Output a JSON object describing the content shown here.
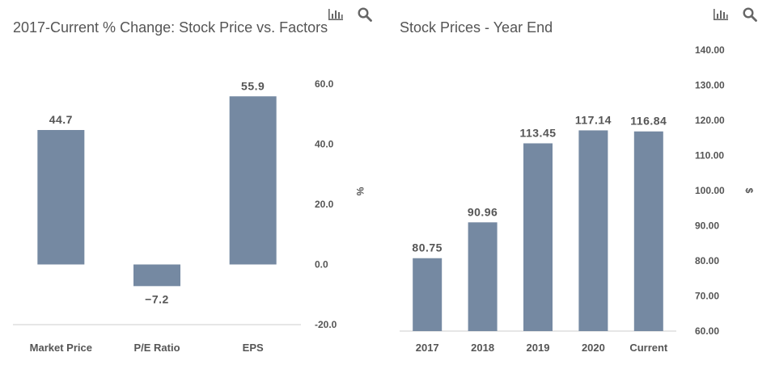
{
  "colors": {
    "bar": "#7589a2",
    "axis_line": "#cccccc",
    "text": "#555555",
    "icon": "#666666"
  },
  "icons": {
    "chart_menu": "bar-chart-icon",
    "zoom": "search-icon"
  },
  "chart_data": [
    {
      "type": "bar",
      "title": "2017-Current % Change: Stock Price vs. Factors",
      "categories": [
        "Market Price",
        "P/E Ratio",
        "EPS"
      ],
      "values": [
        44.7,
        -7.2,
        55.9
      ],
      "data_labels": [
        "44.7",
        "−7.2",
        "55.9"
      ],
      "ylabel": "%",
      "ylim": [
        -20,
        60
      ],
      "yticks": [
        "-20.0",
        "0.0",
        "20.0",
        "40.0",
        "60.0"
      ],
      "ytick_values": [
        -20,
        0,
        20,
        40,
        60
      ],
      "axis_side": "right",
      "grid": false,
      "legend": "none"
    },
    {
      "type": "bar",
      "title": "Stock Prices - Year End",
      "categories": [
        "2017",
        "2018",
        "2019",
        "2020",
        "Current"
      ],
      "values": [
        80.75,
        90.96,
        113.45,
        117.14,
        116.84
      ],
      "data_labels": [
        "80.75",
        "90.96",
        "113.45",
        "117.14",
        "116.84"
      ],
      "ylabel": "$",
      "ylim": [
        60,
        140
      ],
      "yticks": [
        "60.00",
        "70.00",
        "80.00",
        "90.00",
        "100.00",
        "110.00",
        "120.00",
        "130.00",
        "140.00"
      ],
      "ytick_values": [
        60,
        70,
        80,
        90,
        100,
        110,
        120,
        130,
        140
      ],
      "axis_side": "right",
      "grid": false,
      "legend": "none"
    }
  ]
}
